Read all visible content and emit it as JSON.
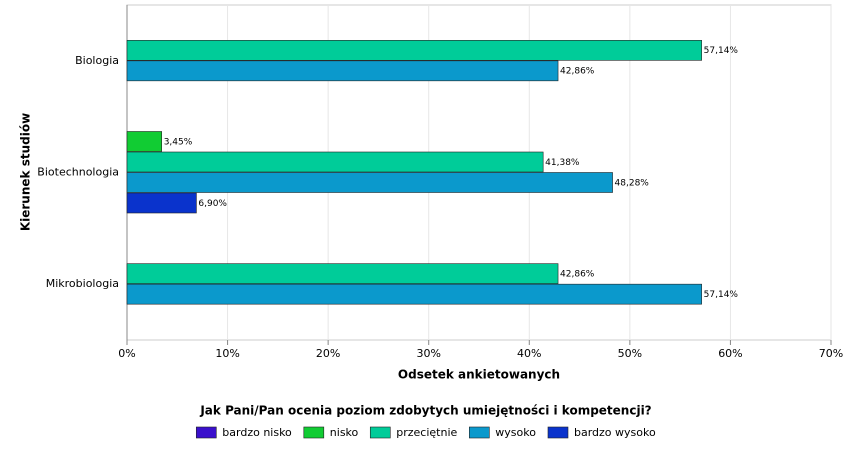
{
  "chart_data": {
    "type": "hbar",
    "x_label": "Odsetek ankietowanych",
    "y_label": "Kierunek studiów",
    "legend_title": "Jak Pani/Pan ocenia poziom zdobytych umiejętności i kompetencji?",
    "categories": [
      "Biologia",
      "Biotechnologia",
      "Mikrobiologia"
    ],
    "series": [
      {
        "name": "bardzo nisko",
        "color": "#3a10cc",
        "values": [
          null,
          null,
          null
        ],
        "value_labels": [
          null,
          null,
          null
        ]
      },
      {
        "name": "nisko",
        "color": "#11cc33",
        "values": [
          null,
          3.45,
          null
        ],
        "value_labels": [
          null,
          "3,45%",
          null
        ]
      },
      {
        "name": "przeciętnie",
        "color": "#00cc99",
        "values": [
          57.14,
          41.38,
          42.86
        ],
        "value_labels": [
          "57,14%",
          "41,38%",
          "42,86%"
        ]
      },
      {
        "name": "wysoko",
        "color": "#0b99cc",
        "values": [
          42.86,
          48.28,
          57.14
        ],
        "value_labels": [
          "42,86%",
          "48,28%",
          "57,14%"
        ]
      },
      {
        "name": "bardzo wysoko",
        "color": "#0a33cc",
        "values": [
          null,
          6.9,
          null
        ],
        "value_labels": [
          null,
          "6,90%",
          null
        ]
      }
    ],
    "xlim": [
      0,
      70
    ],
    "xticks": [
      {
        "value": 0,
        "label": "0%"
      },
      {
        "value": 10,
        "label": "10%"
      },
      {
        "value": 20,
        "label": "20%"
      },
      {
        "value": 30,
        "label": "30%"
      },
      {
        "value": 40,
        "label": "40%"
      },
      {
        "value": 50,
        "label": "50%"
      },
      {
        "value": 60,
        "label": "60%"
      },
      {
        "value": 70,
        "label": "70%"
      }
    ],
    "grid": true
  }
}
